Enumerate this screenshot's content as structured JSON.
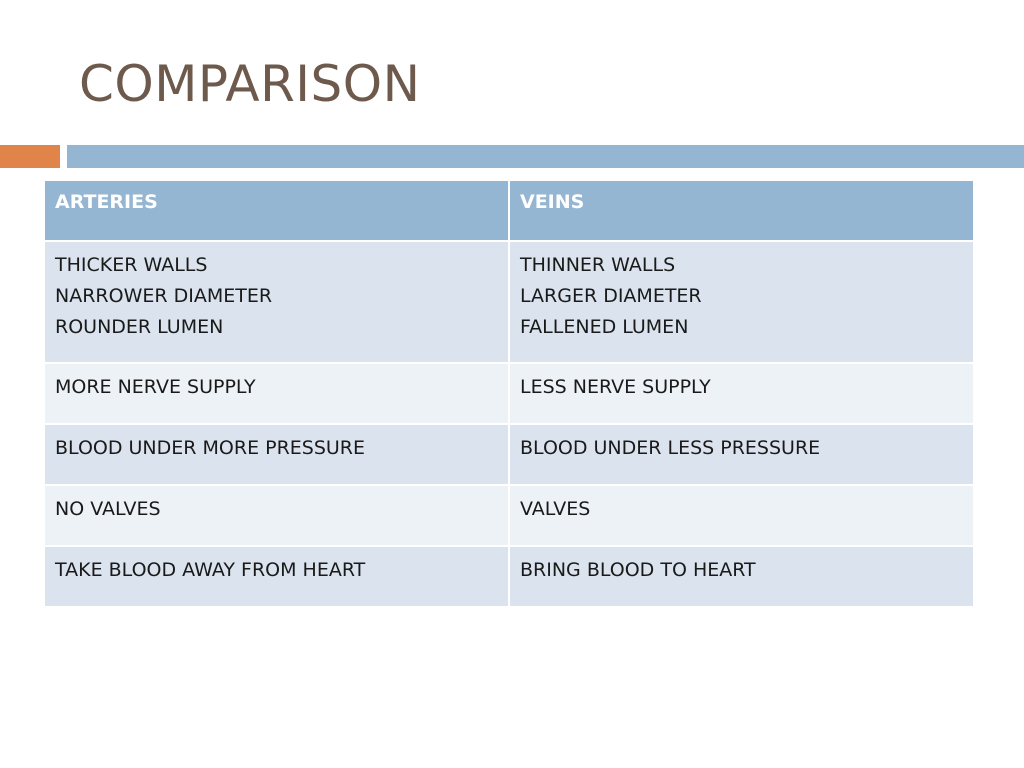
{
  "slide": {
    "title": "COMPARISON"
  },
  "table": {
    "headers": [
      "ARTERIES",
      "VEINS"
    ],
    "rows": [
      {
        "arteries": [
          "THICKER WALLS",
          "NARROWER DIAMETER",
          "ROUNDER LUMEN"
        ],
        "veins": [
          "THINNER WALLS",
          "LARGER DIAMETER",
          "FALLENED LUMEN"
        ]
      },
      {
        "arteries": [
          "MORE NERVE SUPPLY"
        ],
        "veins": [
          "LESS NERVE SUPPLY"
        ]
      },
      {
        "arteries": [
          "BLOOD UNDER MORE PRESSURE"
        ],
        "veins": [
          "BLOOD UNDER LESS PRESSURE"
        ]
      },
      {
        "arteries": [
          "NO VALVES"
        ],
        "veins": [
          "VALVES"
        ]
      },
      {
        "arteries": [
          "TAKE BLOOD AWAY FROM HEART"
        ],
        "veins": [
          "BRING BLOOD TO HEART"
        ]
      }
    ]
  },
  "colors": {
    "title": "#6d5a4d",
    "accent_orange": "#e0844a",
    "accent_blue": "#94b6d3",
    "row_dark": "#dae3ee",
    "row_light": "#edf2f7"
  }
}
